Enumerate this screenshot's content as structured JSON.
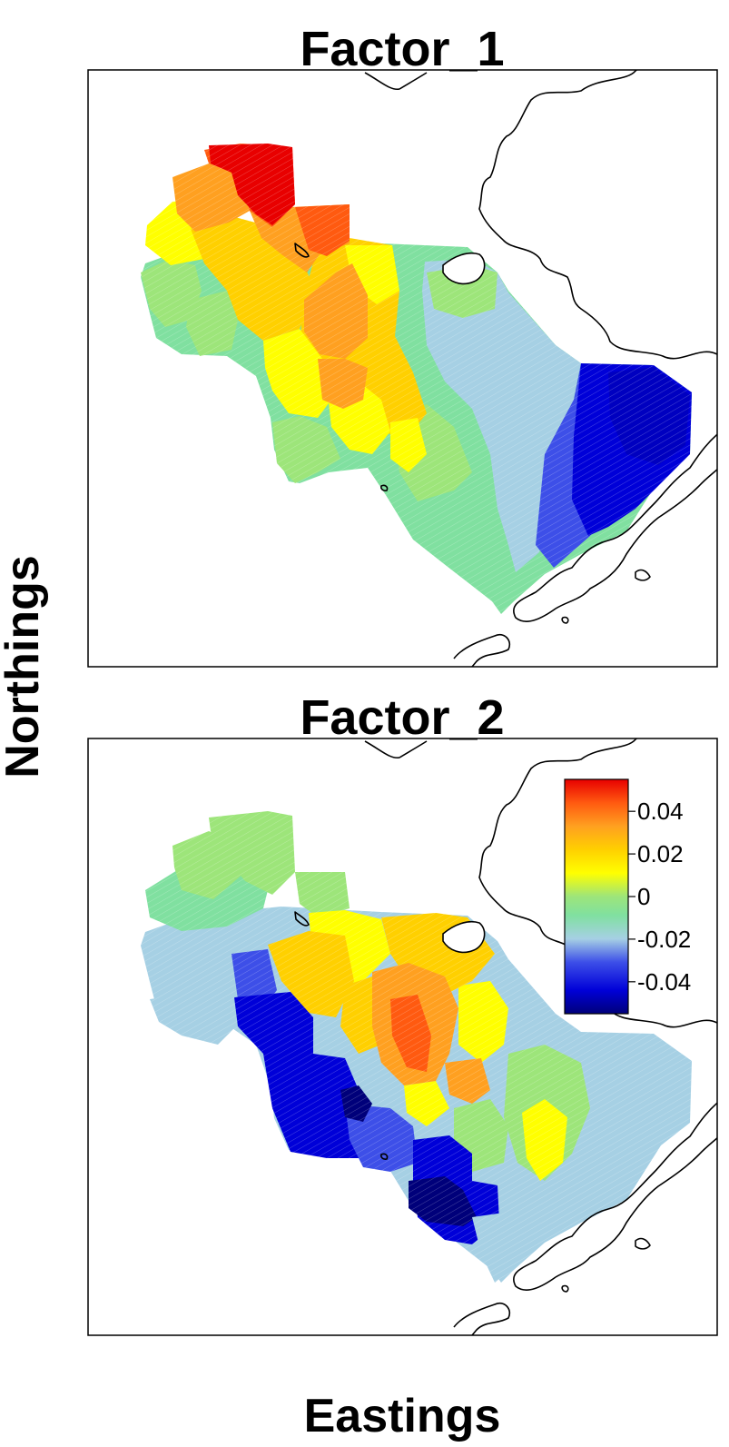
{
  "xlabel": "Eastings",
  "ylabel": "Northings",
  "colors": {
    "ramp": [
      "#00007a",
      "#0000d8",
      "#3d4fe8",
      "#a6d0e4",
      "#80e0a0",
      "#9de57a",
      "#ffff00",
      "#ffd000",
      "#ffa020",
      "#ff5a10",
      "#e80000"
    ]
  },
  "panels": [
    {
      "title": "Factor_1"
    },
    {
      "title": "Factor_2"
    }
  ],
  "legend": {
    "range": [
      -0.055,
      0.055
    ],
    "ticks": [
      {
        "value": 0.04,
        "label": "0.04"
      },
      {
        "value": 0.02,
        "label": "0.02"
      },
      {
        "value": 0,
        "label": "0"
      },
      {
        "value": -0.02,
        "label": "-0.02"
      },
      {
        "value": -0.04,
        "label": "-0.04"
      }
    ]
  }
}
